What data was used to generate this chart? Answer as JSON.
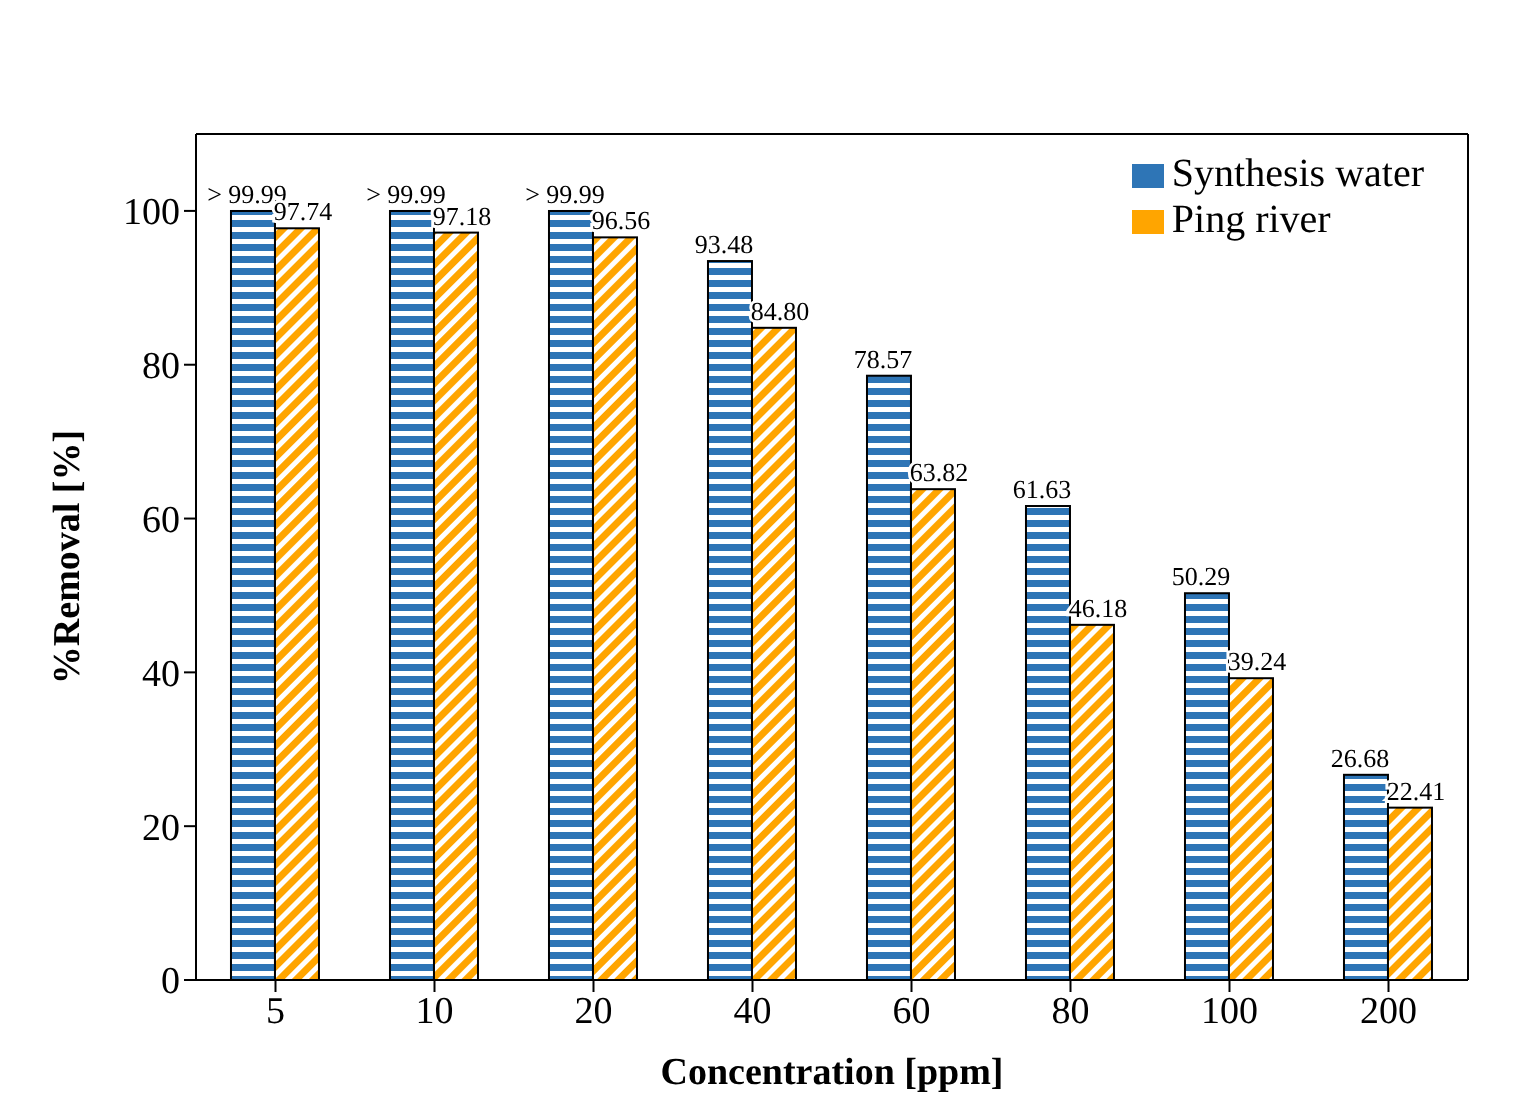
{
  "chart_data": {
    "type": "bar",
    "xlabel": "Concentration [ppm]",
    "ylabel": "%Removal [%]",
    "categories": [
      "5",
      "10",
      "20",
      "40",
      "60",
      "80",
      "100",
      "200"
    ],
    "series": [
      {
        "name": "Synthesis water",
        "color": "#2e75b6",
        "values": [
          99.99,
          99.99,
          99.99,
          93.48,
          78.57,
          61.63,
          50.29,
          26.68
        ],
        "value_labels": [
          "> 99.99",
          "> 99.99",
          "> 99.99",
          "93.48",
          "78.57",
          "61.63",
          "50.29",
          "26.68"
        ]
      },
      {
        "name": "Ping river",
        "color": "#ffa500",
        "values": [
          97.74,
          97.18,
          96.56,
          84.8,
          63.82,
          46.18,
          39.24,
          22.41
        ],
        "value_labels": [
          "97.74",
          "97.18",
          "96.56",
          "84.80",
          "63.82",
          "46.18",
          "39.24",
          "22.41"
        ]
      }
    ],
    "ylim": [
      0,
      110
    ],
    "yticks": [
      0,
      20,
      40,
      60,
      80,
      100
    ],
    "grid": false,
    "legend": "top right"
  }
}
